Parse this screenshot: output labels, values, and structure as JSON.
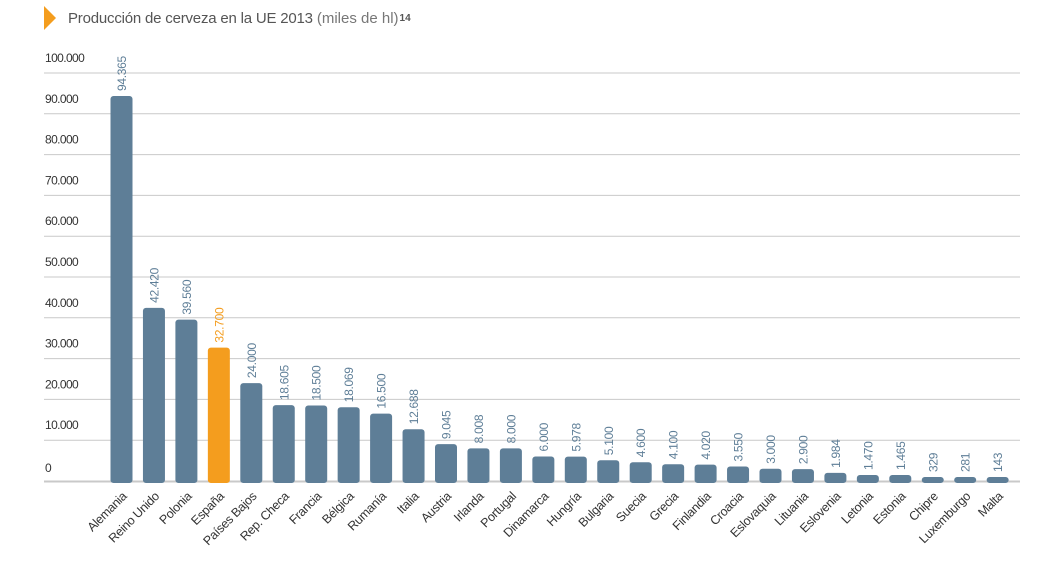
{
  "chart_data": {
    "type": "bar",
    "title": "Producción de cerveza en la UE 2013",
    "unit": "(miles de hl)",
    "footnote": "14",
    "ylim": [
      0,
      100000
    ],
    "yticks": [
      "100.000",
      "90.000",
      "80.000",
      "70.000",
      "60.000",
      "50.000",
      "40.000",
      "30.000",
      "20.000",
      "10.000",
      "0"
    ],
    "ytick_values": [
      100000,
      90000,
      80000,
      70000,
      60000,
      50000,
      40000,
      30000,
      20000,
      10000,
      0
    ],
    "grid": true,
    "colors": {
      "default": "#5E7E97",
      "highlight": "#F49D1E",
      "grid": "#C9C9C9",
      "tick_text": "#333333"
    },
    "highlight_index": 3,
    "categories": [
      "Alemania",
      "Reino Unido",
      "Polonia",
      "España",
      "Países Bajos",
      "Rep. Checa",
      "Francia",
      "Bélgica",
      "Rumanía",
      "Italia",
      "Austria",
      "Irlanda",
      "Portugal",
      "Dinamarca",
      "Hungría",
      "Bulgaria",
      "Suecia",
      "Grecia",
      "Finlandia",
      "Croacia",
      "Eslovaquia",
      "Lituania",
      "Eslovenia",
      "Letonia",
      "Estonia",
      "Chipre",
      "Luxemburgo",
      "Malta"
    ],
    "values": [
      94365,
      42420,
      39560,
      32700,
      24000,
      18605,
      18500,
      18069,
      16500,
      12688,
      9045,
      8008,
      8000,
      6000,
      5978,
      5100,
      4600,
      4100,
      4020,
      3550,
      3000,
      2900,
      1984,
      1470,
      1465,
      329,
      281,
      143
    ],
    "value_labels": [
      "94.365",
      "42.420",
      "39.560",
      "32.700",
      "24.000",
      "18.605",
      "18.500",
      "18.069",
      "16.500",
      "12.688",
      "9.045",
      "8.008",
      "8.000",
      "6.000",
      "5.978",
      "5.100",
      "4.600",
      "4.100",
      "4.020",
      "3.550",
      "3.000",
      "2.900",
      "1.984",
      "1.470",
      "1.465",
      "329",
      "281",
      "143"
    ]
  }
}
